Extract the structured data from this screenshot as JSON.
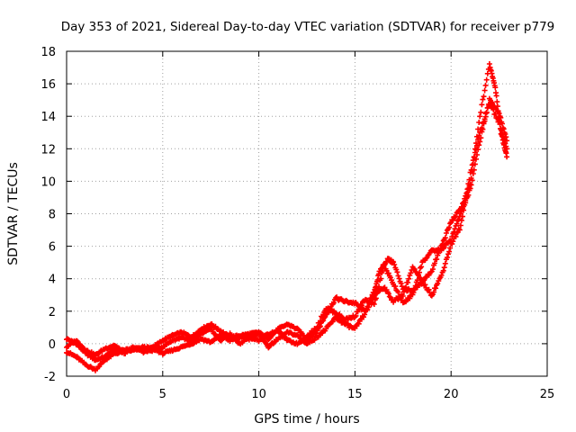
{
  "chart_data": {
    "type": "scatter",
    "title": "Day 353 of 2021, Sidereal Day-to-day VTEC variation (SDTVAR) for receiver p779",
    "xlabel": "GPS time / hours",
    "ylabel": "SDTVAR / TECUs",
    "xlim": [
      0,
      25
    ],
    "ylim": [
      -2,
      18
    ],
    "xticks": [
      0,
      5,
      10,
      15,
      20,
      25
    ],
    "yticks": [
      -2,
      0,
      2,
      4,
      6,
      8,
      10,
      12,
      14,
      16,
      18
    ],
    "grid": true,
    "marker": "+",
    "series_color": "#ff0000",
    "grid_color": "#a0a0a0",
    "series": [
      {
        "name": "trace-1",
        "x": [
          0,
          0.5,
          1,
          1.5,
          2,
          2.5,
          3,
          3.5,
          4,
          4.5,
          5,
          5.5,
          6,
          6.5,
          7,
          7.5,
          8,
          8.5,
          9,
          9.5,
          10,
          10.5,
          11,
          11.5,
          12,
          12.5,
          13,
          13.5,
          14,
          14.5,
          15,
          15.5,
          16,
          16.3,
          16.7,
          17,
          17.5,
          18,
          18.5,
          19,
          19.5,
          20,
          20.5,
          21,
          21.5,
          22,
          22.3,
          22.6,
          22.9
        ],
        "y": [
          0.3,
          0.0,
          -0.6,
          -1.0,
          -0.8,
          -0.3,
          -0.4,
          -0.3,
          -0.4,
          -0.2,
          0.2,
          0.5,
          0.7,
          0.4,
          0.9,
          1.2,
          0.8,
          0.4,
          0.5,
          0.6,
          0.7,
          0.3,
          0.9,
          1.2,
          0.9,
          0.3,
          0.7,
          1.8,
          2.8,
          2.6,
          2.5,
          2.0,
          3.2,
          4.5,
          5.2,
          5.0,
          3.4,
          3.2,
          3.8,
          4.5,
          6.0,
          7.5,
          8.3,
          9.8,
          14.0,
          17.2,
          15.8,
          13.0,
          11.5
        ]
      },
      {
        "name": "trace-2",
        "x": [
          0,
          0.5,
          1,
          1.5,
          2,
          2.5,
          3,
          3.5,
          4,
          4.5,
          5,
          5.5,
          6,
          6.5,
          7,
          7.5,
          8,
          8.5,
          9,
          9.5,
          10,
          10.5,
          11,
          11.5,
          12,
          12.5,
          13,
          13.5,
          14,
          14.5,
          15,
          15.5,
          16,
          16.5,
          17,
          17.5,
          18,
          18.5,
          19,
          19.5,
          20,
          20.5,
          21,
          21.5,
          22,
          22.5,
          22.9
        ],
        "y": [
          -0.5,
          -0.8,
          -1.3,
          -1.6,
          -1.0,
          -0.6,
          -0.5,
          -0.4,
          -0.2,
          -0.3,
          -0.6,
          -0.4,
          -0.2,
          0.0,
          0.3,
          0.1,
          0.5,
          0.2,
          0.4,
          0.3,
          0.6,
          -0.2,
          0.3,
          0.7,
          0.5,
          0.0,
          0.4,
          0.9,
          1.6,
          1.2,
          0.9,
          1.8,
          3.0,
          3.5,
          2.6,
          3.0,
          4.7,
          3.8,
          3.0,
          4.2,
          6.1,
          7.2,
          10.5,
          13.0,
          14.8,
          13.6,
          12.0
        ]
      },
      {
        "name": "trace-3",
        "x": [
          0,
          0.5,
          1,
          1.5,
          2,
          2.5,
          3,
          3.5,
          4,
          4.5,
          5,
          5.5,
          6,
          6.5,
          7,
          7.5,
          8,
          8.5,
          9,
          9.5,
          10,
          10.5,
          11,
          11.5,
          12,
          12.5,
          13,
          13.5,
          14,
          14.5,
          15,
          15.5,
          16,
          16.5,
          17,
          17.5,
          18,
          18.5,
          19,
          19.5,
          20,
          20.5,
          21,
          21.5,
          22,
          22.5,
          22.9
        ],
        "y": [
          -0.2,
          0.2,
          -0.4,
          -0.7,
          -0.3,
          -0.1,
          -0.6,
          -0.2,
          -0.5,
          -0.4,
          -0.2,
          0.2,
          0.4,
          0.1,
          0.6,
          0.9,
          0.2,
          0.6,
          0.0,
          0.4,
          0.2,
          0.6,
          0.8,
          0.2,
          0.0,
          0.4,
          1.0,
          2.2,
          1.9,
          1.5,
          1.7,
          2.7,
          2.4,
          4.8,
          3.7,
          2.5,
          3.0,
          5.0,
          5.7,
          5.8,
          6.4,
          8.0,
          9.5,
          12.5,
          15.0,
          14.2,
          12.5
        ]
      }
    ]
  }
}
